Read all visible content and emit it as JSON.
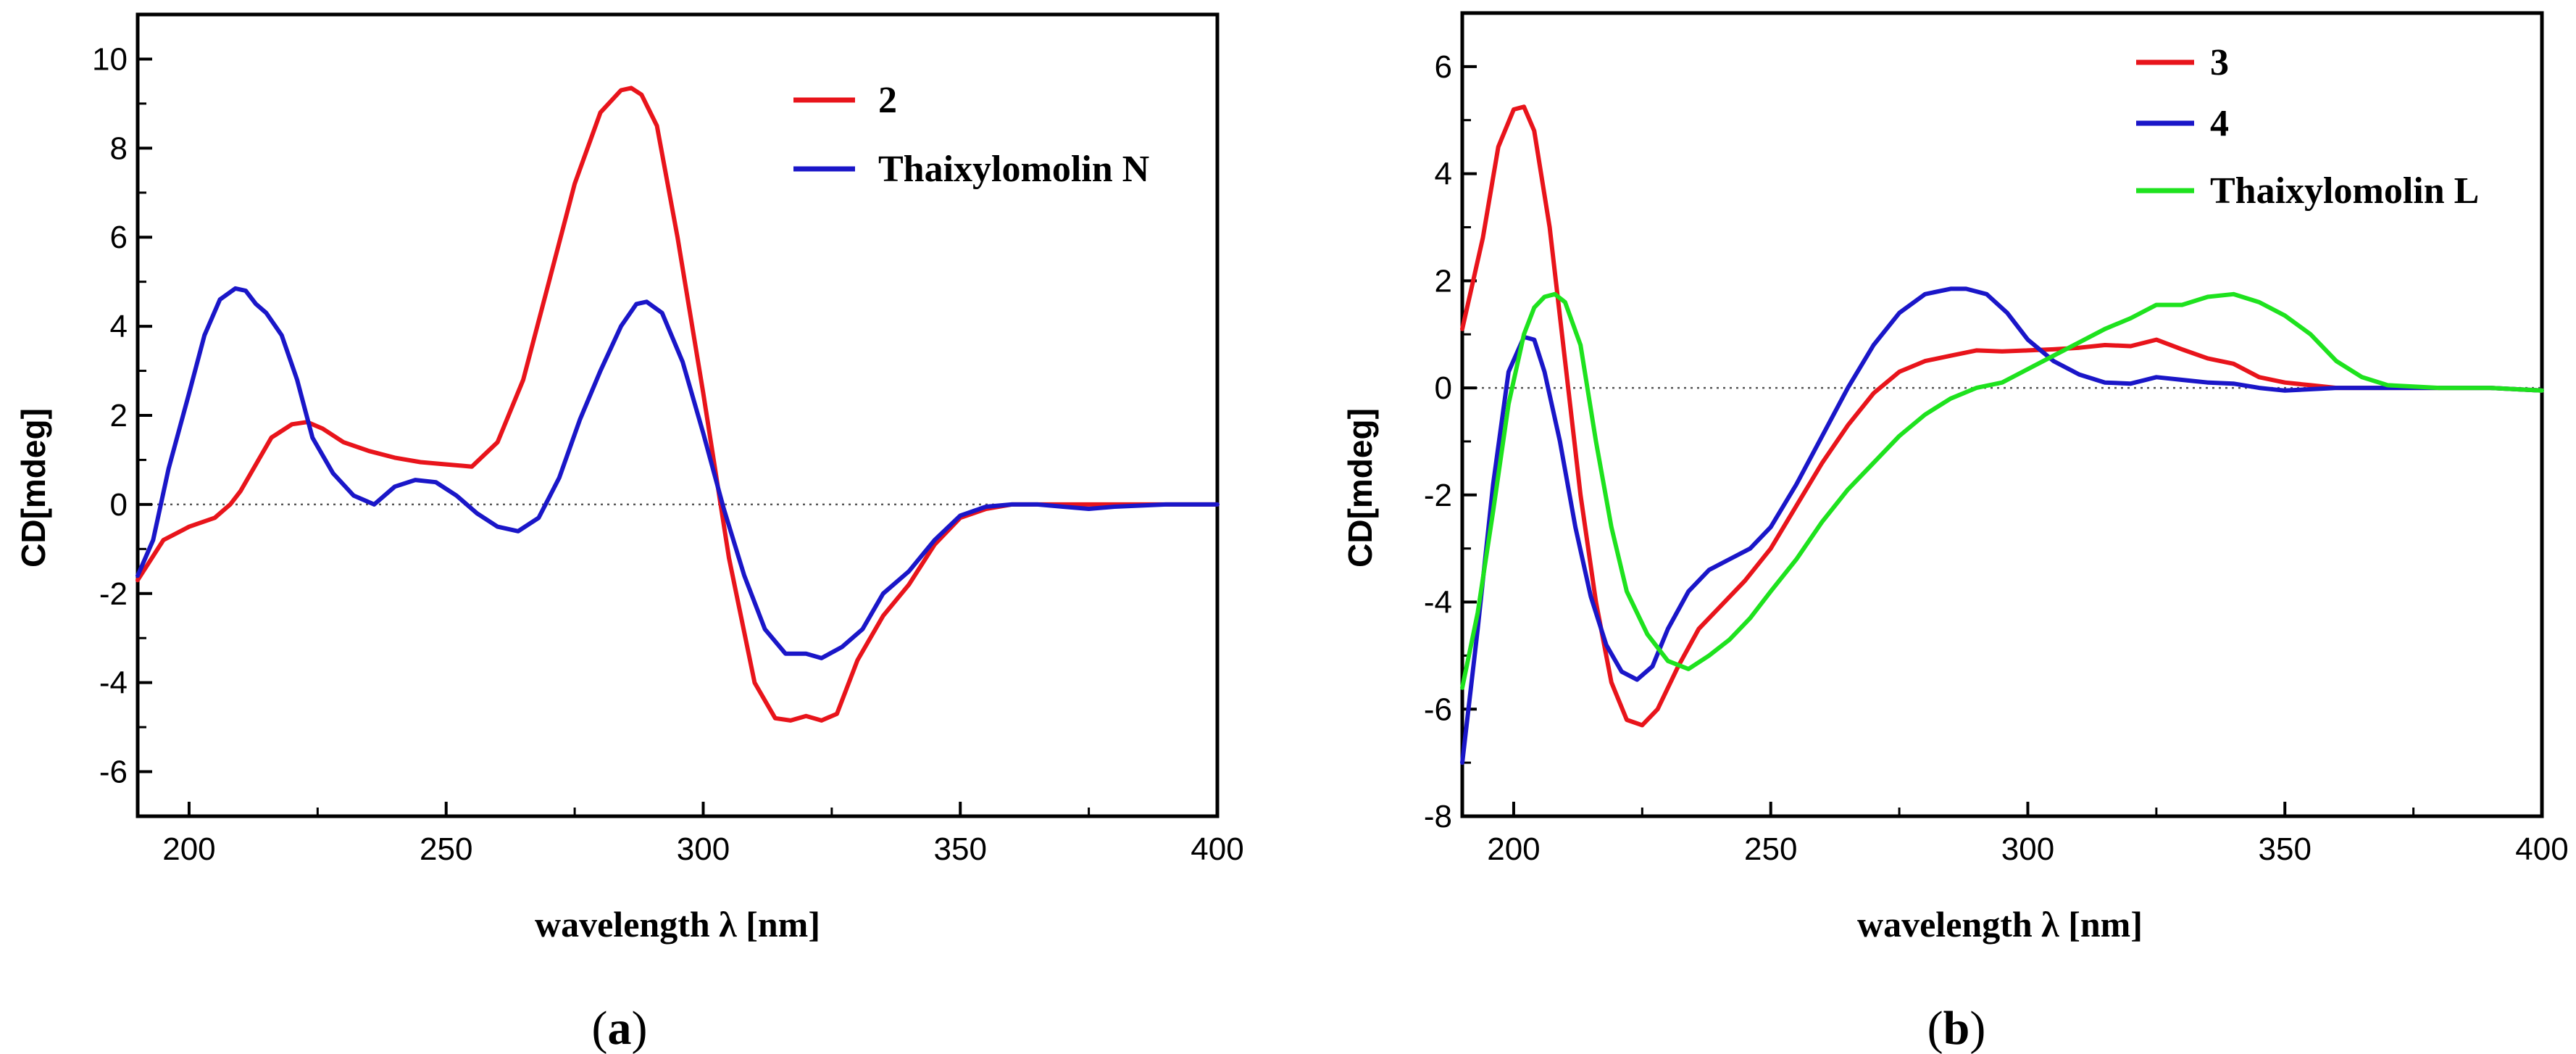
{
  "chart_data": [
    {
      "type": "line",
      "panel_label": "a",
      "xlabel": "wavelength λ [nm]",
      "ylabel": "CD[mdeg]",
      "xlim": [
        190,
        400
      ],
      "ylim": [
        -7,
        11
      ],
      "xticks": [
        200,
        250,
        300,
        350,
        400
      ],
      "yticks": [
        -6,
        -4,
        -2,
        0,
        2,
        4,
        6,
        8,
        10
      ],
      "zero_line": true,
      "legend_position": "top-right",
      "series": [
        {
          "name": "2",
          "color": "#e8141b",
          "x": [
            190,
            195,
            200,
            205,
            208,
            210,
            213,
            216,
            220,
            223,
            226,
            230,
            235,
            240,
            245,
            250,
            255,
            260,
            265,
            270,
            275,
            280,
            284,
            286,
            288,
            291,
            295,
            300,
            305,
            310,
            314,
            317,
            320,
            323,
            326,
            330,
            335,
            340,
            345,
            350,
            355,
            360,
            370,
            380,
            390,
            400
          ],
          "y": [
            -1.7,
            -0.8,
            -0.5,
            -0.3,
            0.0,
            0.3,
            0.9,
            1.5,
            1.8,
            1.85,
            1.7,
            1.4,
            1.2,
            1.05,
            0.95,
            0.9,
            0.85,
            1.4,
            2.8,
            5.0,
            7.2,
            8.8,
            9.3,
            9.35,
            9.2,
            8.5,
            6.0,
            2.5,
            -1.2,
            -4.0,
            -4.8,
            -4.85,
            -4.75,
            -4.85,
            -4.7,
            -3.5,
            -2.5,
            -1.8,
            -0.9,
            -0.3,
            -0.1,
            0.0,
            0.0,
            0.0,
            0.0,
            0.0
          ]
        },
        {
          "name": "Thaixylomolin N",
          "color": "#1a16c8",
          "x": [
            190,
            193,
            196,
            200,
            203,
            206,
            209,
            211,
            213,
            215,
            218,
            221,
            224,
            228,
            232,
            236,
            240,
            244,
            248,
            252,
            256,
            260,
            264,
            268,
            272,
            276,
            280,
            284,
            287,
            289,
            292,
            296,
            300,
            304,
            308,
            312,
            316,
            320,
            323,
            327,
            331,
            335,
            340,
            345,
            350,
            355,
            360,
            365,
            370,
            375,
            380,
            390,
            400
          ],
          "y": [
            -1.6,
            -0.8,
            0.8,
            2.5,
            3.8,
            4.6,
            4.85,
            4.8,
            4.5,
            4.3,
            3.8,
            2.8,
            1.5,
            0.7,
            0.2,
            0.0,
            0.4,
            0.55,
            0.5,
            0.2,
            -0.2,
            -0.5,
            -0.6,
            -0.3,
            0.6,
            1.9,
            3.0,
            4.0,
            4.5,
            4.55,
            4.3,
            3.2,
            1.6,
            -0.1,
            -1.6,
            -2.8,
            -3.35,
            -3.35,
            -3.45,
            -3.2,
            -2.8,
            -2.0,
            -1.5,
            -0.8,
            -0.25,
            -0.05,
            0.0,
            0.0,
            -0.05,
            -0.1,
            -0.05,
            0.0,
            0.0
          ]
        }
      ]
    },
    {
      "type": "line",
      "panel_label": "b",
      "xlabel": "wavelength λ [nm]",
      "ylabel": "CD[mdeg]",
      "xlim": [
        190,
        400
      ],
      "ylim": [
        -8,
        7
      ],
      "xticks": [
        200,
        250,
        300,
        350,
        400
      ],
      "yticks": [
        -8,
        -6,
        -4,
        -2,
        0,
        2,
        4,
        6
      ],
      "zero_line": true,
      "legend_position": "top-right",
      "series": [
        {
          "name": "3",
          "color": "#e8141b",
          "x": [
            190,
            194,
            197,
            200,
            202,
            204,
            207,
            210,
            213,
            216,
            219,
            222,
            225,
            228,
            232,
            236,
            240,
            245,
            250,
            255,
            260,
            265,
            270,
            275,
            280,
            285,
            290,
            295,
            300,
            305,
            310,
            315,
            320,
            325,
            330,
            335,
            340,
            345,
            350,
            355,
            360,
            370,
            380,
            390,
            400
          ],
          "y": [
            1.1,
            2.8,
            4.5,
            5.2,
            5.25,
            4.8,
            3.0,
            0.5,
            -2.0,
            -4.0,
            -5.5,
            -6.2,
            -6.3,
            -6.0,
            -5.2,
            -4.5,
            -4.1,
            -3.6,
            -3.0,
            -2.2,
            -1.4,
            -0.7,
            -0.1,
            0.3,
            0.5,
            0.6,
            0.7,
            0.68,
            0.7,
            0.72,
            0.75,
            0.8,
            0.78,
            0.9,
            0.72,
            0.55,
            0.45,
            0.2,
            0.1,
            0.05,
            0.0,
            0.0,
            0.0,
            0.0,
            -0.05
          ]
        },
        {
          "name": "4",
          "color": "#1a16c8",
          "x": [
            190,
            193,
            196,
            199,
            202,
            204,
            206,
            209,
            212,
            215,
            218,
            221,
            224,
            227,
            230,
            234,
            238,
            242,
            246,
            250,
            255,
            260,
            265,
            270,
            275,
            280,
            285,
            288,
            292,
            296,
            300,
            305,
            310,
            315,
            320,
            325,
            330,
            335,
            340,
            345,
            350,
            360,
            370,
            380,
            390,
            400
          ],
          "y": [
            -7.0,
            -4.5,
            -1.8,
            0.3,
            0.95,
            0.9,
            0.3,
            -1.0,
            -2.6,
            -3.9,
            -4.8,
            -5.3,
            -5.45,
            -5.2,
            -4.5,
            -3.8,
            -3.4,
            -3.2,
            -3.0,
            -2.6,
            -1.8,
            -0.9,
            0.0,
            0.8,
            1.4,
            1.75,
            1.85,
            1.85,
            1.75,
            1.4,
            0.9,
            0.5,
            0.25,
            0.1,
            0.08,
            0.2,
            0.15,
            0.1,
            0.08,
            0.0,
            -0.05,
            0.0,
            0.0,
            0.0,
            0.0,
            -0.05
          ]
        },
        {
          "name": "Thaixylomolin L",
          "color": "#1ee21e",
          "x": [
            190,
            193,
            196,
            199,
            202,
            204,
            206,
            208,
            210,
            213,
            216,
            219,
            222,
            226,
            230,
            234,
            238,
            242,
            246,
            250,
            255,
            260,
            265,
            270,
            275,
            280,
            285,
            290,
            295,
            300,
            305,
            310,
            315,
            320,
            325,
            330,
            335,
            340,
            345,
            350,
            355,
            360,
            365,
            370,
            380,
            390,
            400
          ],
          "y": [
            -5.6,
            -4.2,
            -2.3,
            -0.3,
            1.0,
            1.5,
            1.7,
            1.75,
            1.6,
            0.8,
            -1.0,
            -2.6,
            -3.8,
            -4.6,
            -5.1,
            -5.25,
            -5.0,
            -4.7,
            -4.3,
            -3.8,
            -3.2,
            -2.5,
            -1.9,
            -1.4,
            -0.9,
            -0.5,
            -0.2,
            0.0,
            0.1,
            0.35,
            0.6,
            0.85,
            1.1,
            1.3,
            1.55,
            1.55,
            1.7,
            1.75,
            1.6,
            1.35,
            1.0,
            0.5,
            0.2,
            0.05,
            0.0,
            0.0,
            -0.05
          ]
        }
      ]
    }
  ]
}
